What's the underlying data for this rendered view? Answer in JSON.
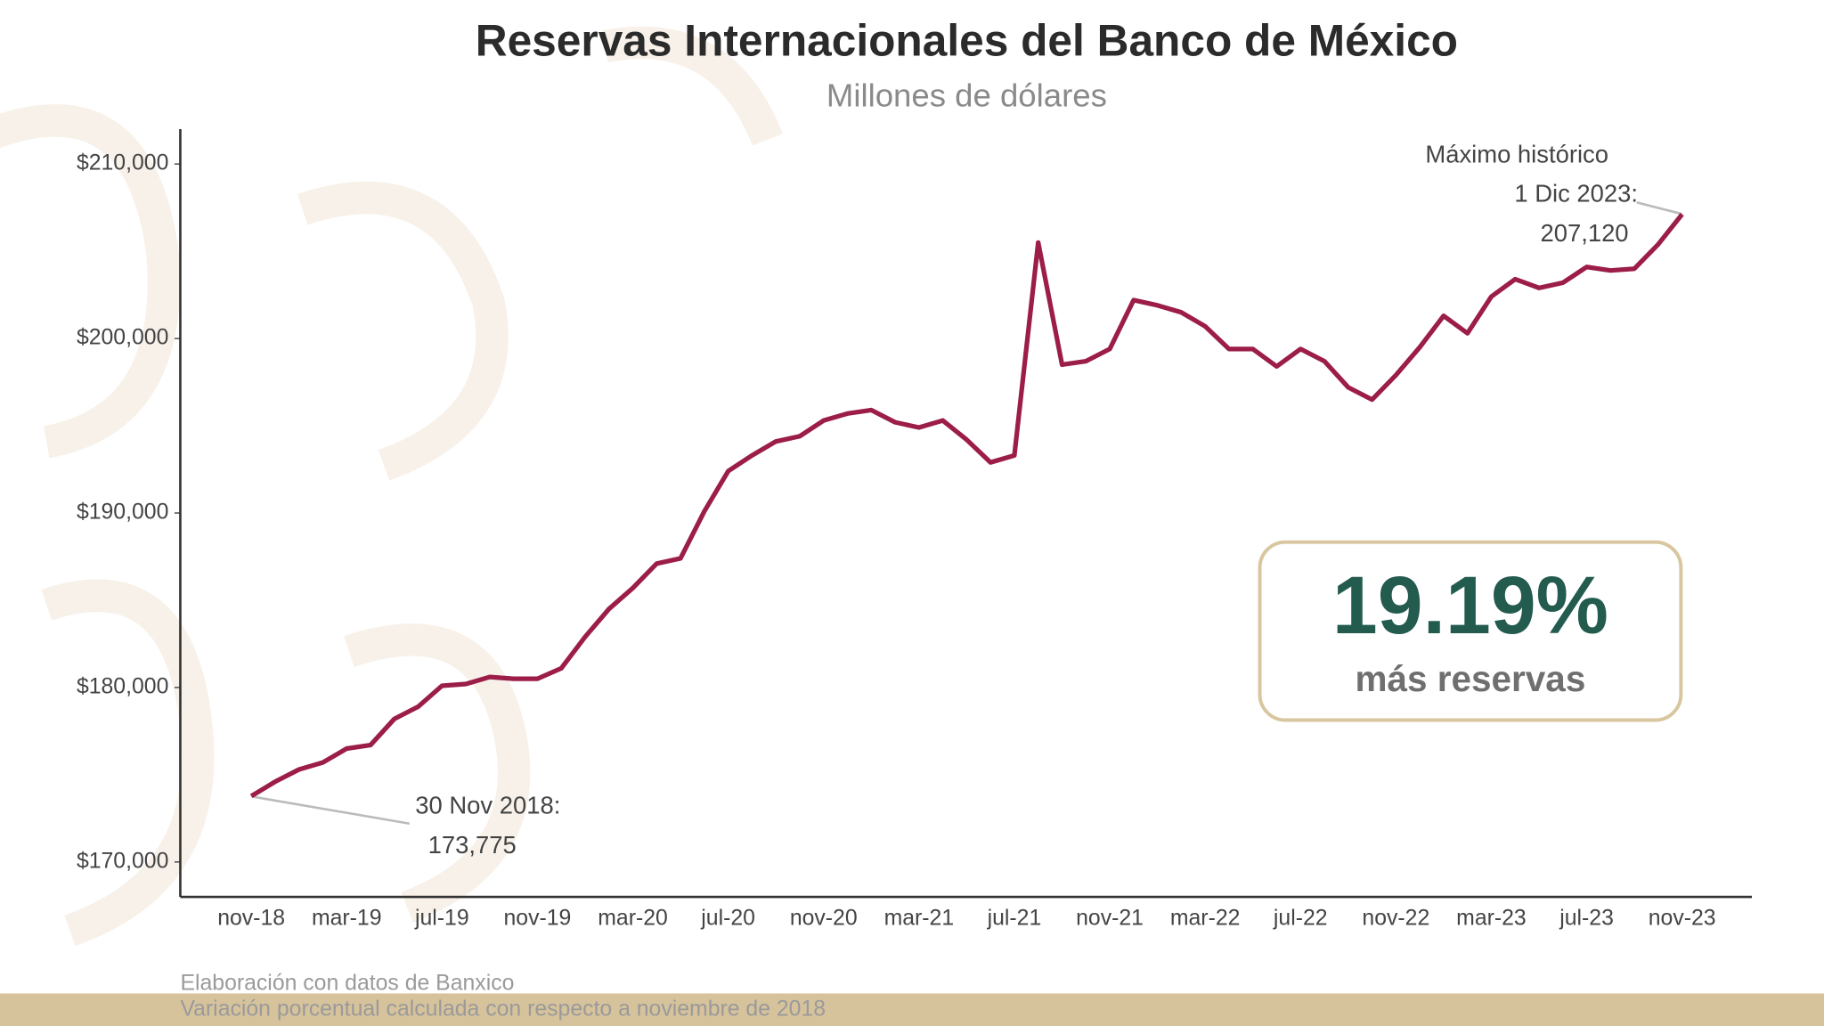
{
  "chart_data": {
    "type": "line",
    "title": "Reservas Internacionales del Banco de México",
    "subtitle": "Millones de dólares",
    "categories": [
      "nov-18",
      null,
      null,
      null,
      "mar-19",
      null,
      null,
      null,
      "jul-19",
      null,
      null,
      null,
      "nov-19",
      null,
      null,
      null,
      "mar-20",
      null,
      null,
      null,
      "jul-20",
      null,
      null,
      null,
      "nov-20",
      null,
      null,
      null,
      "mar-21",
      null,
      null,
      null,
      "jul-21",
      null,
      null,
      null,
      "nov-21",
      null,
      null,
      null,
      "mar-22",
      null,
      null,
      null,
      "jul-22",
      null,
      null,
      null,
      "nov-22",
      null,
      null,
      null,
      "mar-23",
      null,
      null,
      null,
      "jul-23",
      null,
      null,
      null,
      "nov-23"
    ],
    "values": [
      173775,
      174600,
      175300,
      175700,
      176500,
      176700,
      178200,
      178900,
      180100,
      180200,
      180600,
      180500,
      180500,
      181100,
      182900,
      184500,
      185700,
      187100,
      187400,
      190100,
      192400,
      193300,
      194100,
      194400,
      195300,
      195700,
      195900,
      195200,
      194900,
      195300,
      194200,
      192900,
      193300,
      205500,
      198500,
      198700,
      199400,
      202200,
      201900,
      201500,
      200700,
      199400,
      199400,
      198400,
      199400,
      198700,
      197200,
      196500,
      197900,
      199500,
      201300,
      200300,
      202400,
      203400,
      202900,
      203200,
      204100,
      203900,
      204000,
      205400,
      207120
    ],
    "color": "#9b1d48",
    "ylim": [
      168000,
      212000
    ],
    "yticks": [
      {
        "value": 170000,
        "label": "$170,000"
      },
      {
        "value": 180000,
        "label": "$180,000"
      },
      {
        "value": 190000,
        "label": "$190,000"
      },
      {
        "value": 200000,
        "label": "$200,000"
      },
      {
        "value": 210000,
        "label": "$210,000"
      }
    ],
    "grid": false,
    "annotations": [
      "Máximo histórico",
      "1 Dic 2023:",
      "207,120",
      "30 Nov 2018:",
      "173,775"
    ],
    "callout": {
      "value_text": "19.19%",
      "caption": "más reservas"
    },
    "footnotes": [
      "Elaboración con datos de Banxico",
      "Variación porcentual calculada con respecto a noviembre de 2018"
    ]
  }
}
